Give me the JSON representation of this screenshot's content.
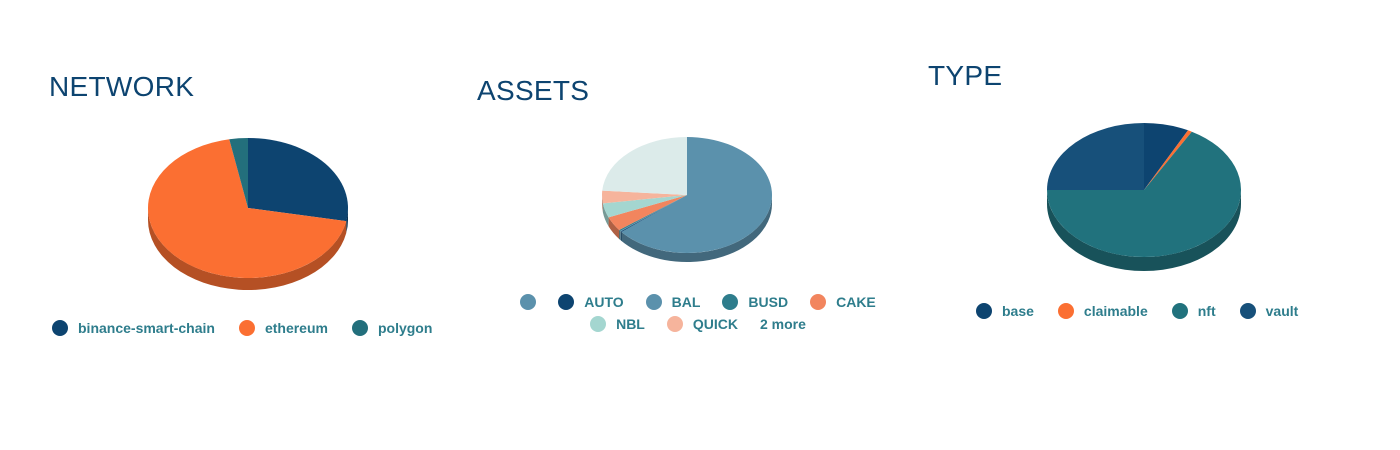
{
  "panels": {
    "network": {
      "title": "NETWORK",
      "legend": [
        "binance-smart-chain",
        "ethereum",
        "polygon"
      ]
    },
    "assets": {
      "title": "ASSETS",
      "legend": [
        "",
        "AUTO",
        "BAL",
        "BUSD",
        "CAKE",
        "NBL",
        "QUICK"
      ],
      "more_label": "2 more"
    },
    "type": {
      "title": "TYPE",
      "legend": [
        "base",
        "claimable",
        "nft",
        "vault"
      ]
    }
  },
  "chart_data": [
    {
      "type": "pie",
      "title": "NETWORK",
      "style": "3d",
      "legend_position": "bottom",
      "slices": [
        {
          "label": "binance-smart-chain",
          "value": 28,
          "color": "#0d4470"
        },
        {
          "label": "ethereum",
          "value": 69,
          "color": "#fb6f32"
        },
        {
          "label": "polygon",
          "value": 3,
          "color": "#236f7c"
        }
      ]
    },
    {
      "type": "pie",
      "title": "ASSETS",
      "style": "3d",
      "legend_position": "bottom",
      "slices": [
        {
          "label": "",
          "value": 64,
          "color": "#5b91ac"
        },
        {
          "label": "AUTO",
          "value": 0.2,
          "color": "#0d4470"
        },
        {
          "label": "BAL",
          "value": 0.2,
          "color": "#5b91ac"
        },
        {
          "label": "BUSD",
          "value": 0.3,
          "color": "#2e7d8c"
        },
        {
          "label": "CAKE",
          "value": 4,
          "color": "#f2855e"
        },
        {
          "label": "NBL",
          "value": 4,
          "color": "#a4d6d0"
        },
        {
          "label": "QUICK",
          "value": 3.5,
          "color": "#f6b49c"
        },
        {
          "label": "2 more",
          "value": 23.8,
          "color": "#dcebea"
        }
      ]
    },
    {
      "type": "pie",
      "title": "TYPE",
      "style": "3d",
      "legend_position": "bottom",
      "slices": [
        {
          "label": "base",
          "value": 7.5,
          "color": "#0d4470"
        },
        {
          "label": "claimable",
          "value": 0.7,
          "color": "#fb6f32"
        },
        {
          "label": "nft",
          "value": 66.8,
          "color": "#21727d"
        },
        {
          "label": "vault",
          "value": 25,
          "color": "#17507a"
        }
      ]
    }
  ]
}
